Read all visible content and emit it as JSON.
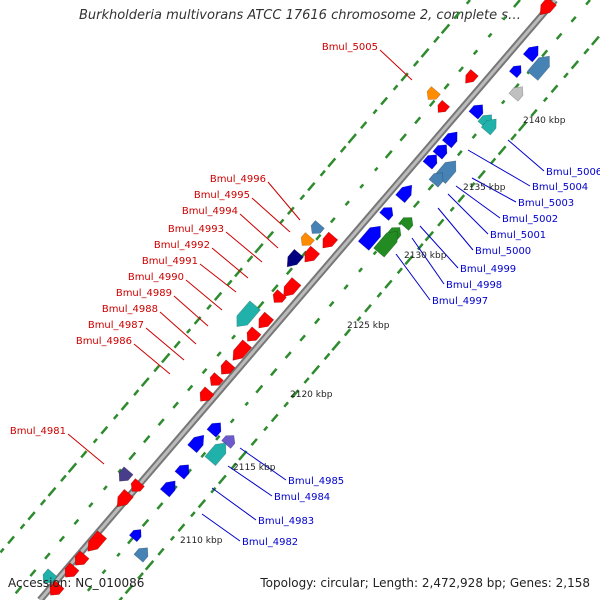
{
  "title": "Burkholderia multivorans ATCC 17616 chromosome 2, complete s…",
  "accession_text": "Accession: NC_010086",
  "topology_text": "Topology: circular; Length: 2,472,928 bp; Genes: 2,158",
  "colors": {
    "forward": "#ff0000",
    "reverse": "#0000ff",
    "backbone": "#888888",
    "gc_tick": "#2e8b2e"
  },
  "scale_labels": [
    "2140 kbp",
    "2135 kbp",
    "2130 kbp",
    "2125 kbp",
    "2120 kbp",
    "2115 kbp",
    "2110 kbp"
  ],
  "forward_labels": [
    "Bmul_5005",
    "Bmul_4996",
    "Bmul_4995",
    "Bmul_4994",
    "Bmul_4993",
    "Bmul_4992",
    "Bmul_4991",
    "Bmul_4990",
    "Bmul_4989",
    "Bmul_4988",
    "Bmul_4987",
    "Bmul_4986",
    "Bmul_4981"
  ],
  "reverse_labels": [
    "Bmul_5006",
    "Bmul_5004",
    "Bmul_5003",
    "Bmul_5002",
    "Bmul_5001",
    "Bmul_5000",
    "Bmul_4999",
    "Bmul_4998",
    "Bmul_4997",
    "Bmul_4985",
    "Bmul_4984",
    "Bmul_4983",
    "Bmul_4982"
  ]
}
